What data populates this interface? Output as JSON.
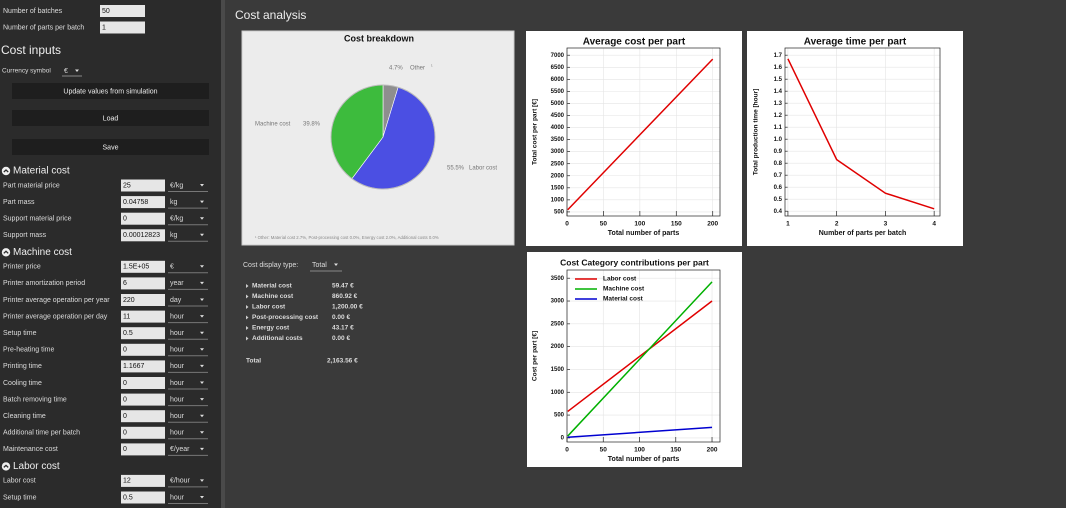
{
  "sidebar": {
    "top_fields": [
      {
        "label": "Number of batches",
        "value": "50"
      },
      {
        "label": "Number of parts per batch",
        "value": "1"
      }
    ],
    "cost_inputs_title": "Cost inputs",
    "currency_label": "Currency symbol",
    "currency_value": "€",
    "buttons": [
      "Update values from simulation",
      "Load",
      "Save"
    ],
    "sections": [
      {
        "title": "Material cost",
        "fields": [
          {
            "label": "Part material price",
            "value": "25",
            "unit": "€/kg"
          },
          {
            "label": "Part mass",
            "value": "0.04758",
            "unit": "kg"
          },
          {
            "label": "Support material price",
            "value": "0",
            "unit": "€/kg"
          },
          {
            "label": "Support mass",
            "value": "0.00012823",
            "unit": "kg"
          }
        ]
      },
      {
        "title": "Machine cost",
        "fields": [
          {
            "label": "Printer price",
            "value": "1.5E+05",
            "unit": "€"
          },
          {
            "label": "Printer amortization period",
            "value": "6",
            "unit": "year"
          },
          {
            "label": "Printer average operation per year",
            "value": "220",
            "unit": "day"
          },
          {
            "label": "Printer average operation per day",
            "value": "11",
            "unit": "hour"
          },
          {
            "label": "Setup time",
            "value": "0.5",
            "unit": "hour"
          },
          {
            "label": "Pre-heating time",
            "value": "0",
            "unit": "hour"
          },
          {
            "label": "Printing time",
            "value": "1.1667",
            "unit": "hour"
          },
          {
            "label": "Cooling time",
            "value": "0",
            "unit": "hour"
          },
          {
            "label": "Batch removing time",
            "value": "0",
            "unit": "hour"
          },
          {
            "label": "Cleaning time",
            "value": "0",
            "unit": "hour"
          },
          {
            "label": "Additional time per batch",
            "value": "0",
            "unit": "hour"
          },
          {
            "label": "Maintenance cost",
            "value": "0",
            "unit": "€/year"
          }
        ]
      },
      {
        "title": "Labor cost",
        "fields": [
          {
            "label": "Labor cost",
            "value": "12",
            "unit": "€/hour"
          },
          {
            "label": "Setup time",
            "value": "0.5",
            "unit": "hour"
          }
        ]
      }
    ]
  },
  "main": {
    "title": "Cost analysis",
    "cost_breakdown": {
      "type": "pie",
      "title": "Cost breakdown",
      "slices": [
        {
          "name": "Other",
          "value": 4.7,
          "value_label": "4.7%",
          "color": "#8e8e8e",
          "note_mark": "¹"
        },
        {
          "name": "Labor cost",
          "value": 55.5,
          "value_label": "55.5%",
          "color": "#4b4fe3"
        },
        {
          "name": "Machine cost",
          "value": 39.8,
          "value_label": "39.8%",
          "color": "#3dbb3d"
        }
      ],
      "footnote": "¹ Other:  Material cost 2.7%,  Post-processing cost 0.0%,  Energy cost 2.0%,  Additional costs 0.0%"
    },
    "average_cost": {
      "type": "line",
      "title": "Average cost per part",
      "x_label": "Total number of parts",
      "y_label": "Total cost per part [€]",
      "x": [
        1,
        200
      ],
      "series": [
        {
          "color": "#e00000",
          "values": [
            590,
            6840
          ]
        }
      ],
      "xlim": [
        0,
        210
      ],
      "ylim": [
        330,
        7300
      ],
      "xticks": [
        0,
        50,
        100,
        150,
        200
      ],
      "yticks": [
        500,
        1000,
        1500,
        2000,
        2500,
        3000,
        3500,
        4000,
        4500,
        5000,
        5500,
        6000,
        6500,
        7000
      ],
      "grid": true
    },
    "average_time": {
      "type": "line",
      "title": "Average time per part",
      "x_label": "Number of parts per batch",
      "y_label": "Total production time [hour]",
      "x": [
        1,
        2,
        3,
        4
      ],
      "series": [
        {
          "color": "#e00000",
          "values": [
            1.67,
            0.83,
            0.55,
            0.42
          ]
        }
      ],
      "xlim": [
        0.94,
        4.12
      ],
      "ylim": [
        0.36,
        1.76
      ],
      "xticks": [
        1,
        2,
        3,
        4
      ],
      "yticks": [
        0.4,
        0.5,
        0.6,
        0.7,
        0.8,
        0.9,
        {
          "value": 1,
          "label": "1.0"
        },
        1.1,
        1.2,
        1.3,
        1.4,
        1.5,
        1.6,
        1.7
      ],
      "grid": true
    },
    "category_contributions": {
      "type": "line",
      "title": "Cost Category contributions per part",
      "x_label": "Total number of parts",
      "y_label": "Cost per part [€]",
      "x": [
        1,
        200
      ],
      "series": [
        {
          "name": "Labor cost",
          "color": "#e00000",
          "values": [
            580,
            3000
          ]
        },
        {
          "name": "Machine cost",
          "color": "#00b000",
          "values": [
            40,
            3420
          ]
        },
        {
          "name": "Material cost",
          "color": "#0000d0",
          "values": [
            15,
            230
          ]
        }
      ],
      "xlim": [
        0,
        211
      ],
      "ylim": [
        -90,
        3680
      ],
      "xticks": [
        0,
        50,
        100,
        150,
        200
      ],
      "yticks": [
        0,
        500,
        1000,
        1500,
        2000,
        2500,
        3000,
        3500
      ],
      "grid": true
    },
    "cost_summary": {
      "display_type_label": "Cost display type:",
      "display_type": "Total",
      "rows": [
        {
          "label": "Material cost",
          "value": "59.47 €"
        },
        {
          "label": "Machine cost",
          "value": "860.92 €"
        },
        {
          "label": "Labor cost",
          "value": "1,200.00 €"
        },
        {
          "label": "Post-processing cost",
          "value": "0.00 €"
        },
        {
          "label": "Energy cost",
          "value": "43.17 €"
        },
        {
          "label": "Additional costs",
          "value": "0.00 €"
        }
      ],
      "total_label": "Total",
      "total_value": "2,163.56 €"
    }
  }
}
